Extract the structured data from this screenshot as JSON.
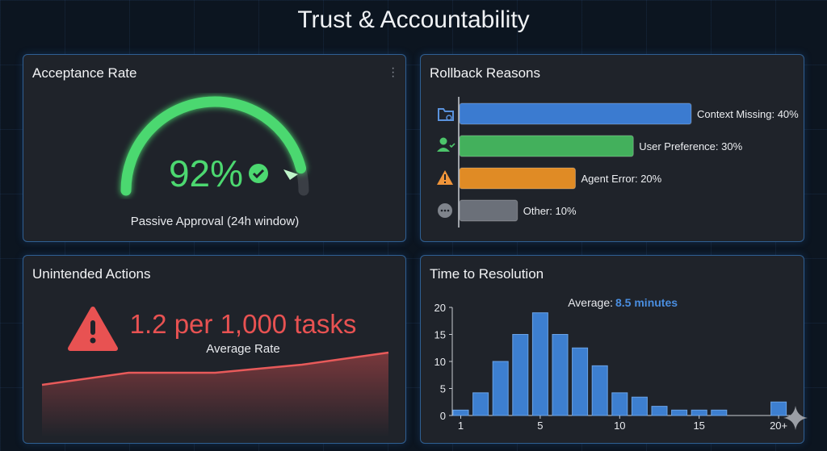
{
  "title": "Trust & Accountability",
  "acceptance": {
    "title": "Acceptance Rate",
    "value_label": "92%",
    "value": 92,
    "caption": "Passive Approval (24h window)",
    "color": "#4cd870"
  },
  "rollback": {
    "title": "Rollback Reasons",
    "items": [
      {
        "label": "Context Missing: 40%",
        "value": 40,
        "color": "#3b7bd0",
        "icon": "folder-search-icon"
      },
      {
        "label": "User Preference: 30%",
        "value": 30,
        "color": "#43b05c",
        "icon": "user-check-icon"
      },
      {
        "label": "Agent Error: 20%",
        "value": 20,
        "color": "#e08b25",
        "icon": "warning-icon"
      },
      {
        "label": "Other: 10%",
        "value": 10,
        "color": "#6b7079",
        "icon": "more-icon"
      }
    ]
  },
  "unintended": {
    "title": "Unintended Actions",
    "value": "1.2 per 1,000 tasks",
    "caption": "Average Rate",
    "color": "#e85252",
    "trend": [
      1.0,
      1.3,
      1.3,
      1.5,
      1.8
    ]
  },
  "resolution": {
    "title": "Time to Resolution",
    "avg_label": "Average:",
    "avg_value": "8.5 minutes",
    "chart_data": {
      "type": "bar",
      "ylim": [
        0,
        20
      ],
      "yticks": [
        0,
        5,
        10,
        15,
        20
      ],
      "xtick_labels": [
        {
          "label": "1",
          "bin": 1
        },
        {
          "label": "5",
          "bin": 5
        },
        {
          "label": "10",
          "bin": 9
        },
        {
          "label": "15",
          "bin": 13
        },
        {
          "label": "20+",
          "bin": 17
        }
      ],
      "values": [
        1,
        4.2,
        10,
        15,
        19,
        15,
        12.5,
        9.2,
        4.2,
        3.4,
        1.7,
        1,
        1,
        1,
        0,
        0,
        2.5
      ],
      "color": "#3d7fd0"
    }
  }
}
